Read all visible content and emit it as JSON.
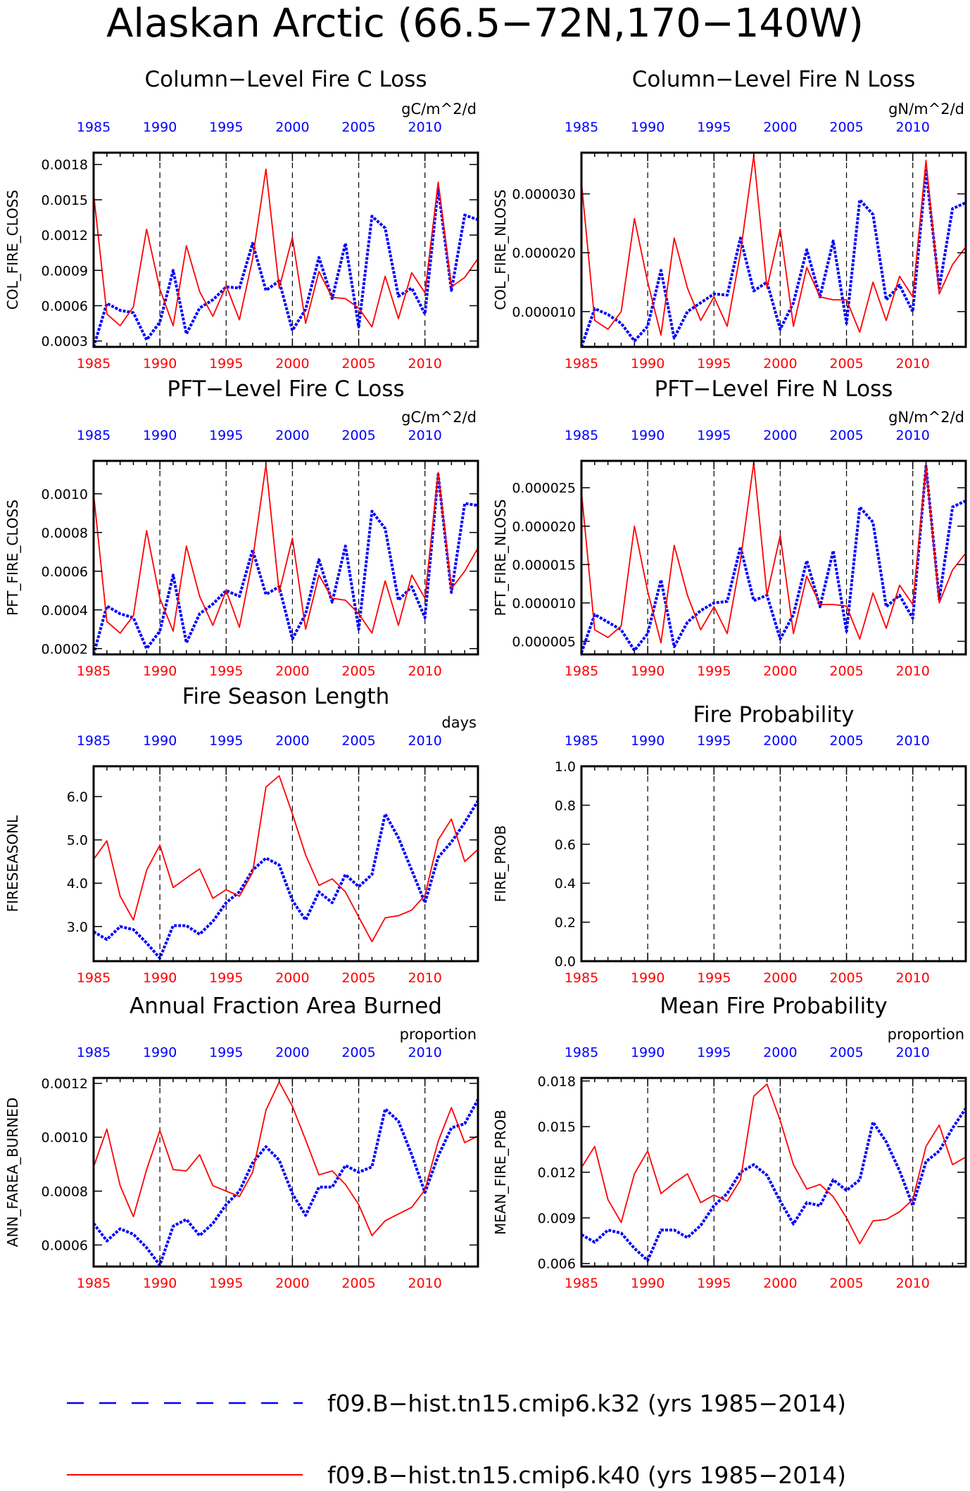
{
  "figure": {
    "title": "Alaskan Arctic (66.5−72N,170−140W)",
    "colors": {
      "k32": "#0000ff",
      "k40": "#ff0000",
      "axis": "#000000"
    }
  },
  "legend": [
    {
      "label": "f09.B−hist.tn15.cmip6.k32 (yrs 1985−2014)",
      "color": "#0000ff",
      "style": "dashed"
    },
    {
      "label": "f09.B−hist.tn15.cmip6.k40 (yrs 1985−2014)",
      "color": "#ff0000",
      "style": "solid"
    }
  ],
  "chart_data": [
    {
      "type": "line",
      "title": "Column−Level Fire C Loss",
      "ylabel": "COL_FIRE_CLOSS",
      "units": "gC/m^2/d",
      "xlim": [
        1985,
        2014
      ],
      "ylim": [
        0.00025,
        0.0019
      ],
      "ytick_values": [
        0.0003,
        0.0006,
        0.0009,
        0.0012,
        0.0015,
        0.0018
      ],
      "ytick_labels": [
        "0.0003",
        "0.0006",
        "0.0009",
        "0.0012",
        "0.0015",
        "0.0018"
      ],
      "x_ticks": [
        1985,
        1990,
        1995,
        2000,
        2005,
        2010
      ],
      "series": [
        {
          "name": "f09.B−hist.tn15.cmip6.k32",
          "values": [
            0.00025,
            0.00062,
            0.00056,
            0.00054,
            0.00031,
            0.00046,
            0.0009,
            0.00036,
            0.00058,
            0.00065,
            0.00076,
            0.00075,
            0.00113,
            0.00073,
            0.00081,
            0.00039,
            0.00057,
            0.00101,
            0.00066,
            0.00113,
            0.00042,
            0.00136,
            0.00126,
            0.00068,
            0.00075,
            0.00053,
            0.0016,
            0.00073,
            0.00137,
            0.00133
          ]
        },
        {
          "name": "f09.B−hist.tn15.cmip6.k40",
          "values": [
            0.00155,
            0.00053,
            0.00043,
            0.00059,
            0.00125,
            0.00074,
            0.00043,
            0.00111,
            0.00072,
            0.00051,
            0.00077,
            0.00048,
            0.001,
            0.00176,
            0.00075,
            0.00118,
            0.00045,
            0.00089,
            0.00067,
            0.00066,
            0.00058,
            0.00042,
            0.00085,
            0.00049,
            0.00088,
            0.00071,
            0.00165,
            0.00076,
            0.00084,
            0.001
          ]
        }
      ]
    },
    {
      "type": "line",
      "title": "Column−Level Fire N Loss",
      "ylabel": "COL_FIRE_NLOSS",
      "units": "gN/m^2/d",
      "xlim": [
        1985,
        2014
      ],
      "ylim": [
        4e-06,
        3.7e-05
      ],
      "ytick_values": [
        1e-05,
        2e-05,
        3e-05
      ],
      "ytick_labels": [
        "0.000010",
        "0.000020",
        "0.000030"
      ],
      "x_ticks": [
        1985,
        1990,
        1995,
        2000,
        2005,
        2010
      ],
      "series": [
        {
          "name": "f09.B−hist.tn15.cmip6.k32",
          "values": [
            4e-06,
            1.05e-05,
            9.5e-06,
            8e-06,
            5e-06,
            7.5e-06,
            1.7e-05,
            5.5e-06,
            1e-05,
            1.15e-05,
            1.3e-05,
            1.28e-05,
            2.25e-05,
            1.35e-05,
            1.5e-05,
            7e-06,
            1.15e-05,
            2.05e-05,
            1.25e-05,
            2.2e-05,
            8e-06,
            2.9e-05,
            2.65e-05,
            1.2e-05,
            1.45e-05,
            1e-05,
            3.4e-05,
            1.4e-05,
            2.75e-05,
            2.85e-05
          ]
        },
        {
          "name": "f09.B−hist.tn15.cmip6.k40",
          "values": [
            3.2e-05,
            8.5e-06,
            7e-06,
            1e-05,
            2.58e-05,
            1.5e-05,
            6e-06,
            2.25e-05,
            1.4e-05,
            8.5e-06,
            1.25e-05,
            7.5e-06,
            2e-05,
            3.65e-05,
            1.4e-05,
            2.4e-05,
            7.5e-06,
            1.75e-05,
            1.25e-05,
            1.2e-05,
            1.2e-05,
            6.5e-06,
            1.5e-05,
            8.5e-06,
            1.6e-05,
            1.25e-05,
            3.57e-05,
            1.3e-05,
            1.8e-05,
            2.1e-05
          ]
        }
      ]
    },
    {
      "type": "line",
      "title": "PFT−Level Fire C Loss",
      "ylabel": "PFT_FIRE_CLOSS",
      "units": "gC/m^2/d",
      "xlim": [
        1985,
        2014
      ],
      "ylim": [
        0.00017,
        0.00117
      ],
      "ytick_values": [
        0.0002,
        0.0004,
        0.0006,
        0.0008,
        0.001
      ],
      "ytick_labels": [
        "0.0002",
        "0.0004",
        "0.0006",
        "0.0008",
        "0.0010"
      ],
      "x_ticks": [
        1985,
        1990,
        1995,
        2000,
        2005,
        2010
      ],
      "series": [
        {
          "name": "f09.B−hist.tn15.cmip6.k32",
          "values": [
            0.00017,
            0.00042,
            0.00038,
            0.00036,
            0.0002,
            0.00029,
            0.00058,
            0.00023,
            0.00038,
            0.00043,
            0.0005,
            0.00047,
            0.00071,
            0.00048,
            0.00052,
            0.00025,
            0.00038,
            0.00066,
            0.00044,
            0.00073,
            0.0003,
            0.00091,
            0.00082,
            0.00045,
            0.00052,
            0.00036,
            0.0011,
            0.00049,
            0.00095,
            0.00094
          ]
        },
        {
          "name": "f09.B−hist.tn15.cmip6.k40",
          "values": [
            0.001,
            0.00034,
            0.00028,
            0.00037,
            0.00081,
            0.00046,
            0.00029,
            0.00073,
            0.00047,
            0.00032,
            0.0005,
            0.00031,
            0.00066,
            0.00115,
            0.00049,
            0.00077,
            0.0003,
            0.00058,
            0.00046,
            0.00045,
            0.00038,
            0.00028,
            0.00055,
            0.00032,
            0.00058,
            0.00046,
            0.00111,
            0.00051,
            0.0006,
            0.00072
          ]
        }
      ]
    },
    {
      "type": "line",
      "title": "PFT−Level Fire N Loss",
      "ylabel": "PFT_FIRE_NLOSS",
      "units": "gN/m^2/d",
      "xlim": [
        1985,
        2014
      ],
      "ylim": [
        3.3e-06,
        2.85e-05
      ],
      "ytick_values": [
        5e-06,
        1e-05,
        1.5e-05,
        2e-05,
        2.5e-05
      ],
      "ytick_labels": [
        "0.000005",
        "0.000010",
        "0.000015",
        "0.000020",
        "0.000025"
      ],
      "x_ticks": [
        1985,
        1990,
        1995,
        2000,
        2005,
        2010
      ],
      "series": [
        {
          "name": "f09.B−hist.tn15.cmip6.k32",
          "values": [
            3.5e-06,
            8.5e-06,
            7.5e-06,
            6.5e-06,
            3.8e-06,
            6e-06,
            1.3e-05,
            4.3e-06,
            7.5e-06,
            9e-06,
            1e-05,
            1.02e-05,
            1.73e-05,
            1.03e-05,
            1.1e-05,
            5.3e-06,
            8.5e-06,
            1.55e-05,
            9.5e-06,
            1.68e-05,
            6.3e-06,
            2.25e-05,
            2.05e-05,
            9.5e-06,
            1.1e-05,
            8e-06,
            2.78e-05,
            1.05e-05,
            2.25e-05,
            2.33e-05
          ]
        },
        {
          "name": "f09.B−hist.tn15.cmip6.k40",
          "values": [
            2.45e-05,
            6.5e-06,
            5.5e-06,
            7e-06,
            2e-05,
            1.15e-05,
            4.8e-06,
            1.75e-05,
            1.1e-05,
            6.5e-06,
            9.5e-06,
            6e-06,
            1.55e-05,
            2.83e-05,
            1.1e-05,
            1.88e-05,
            6e-06,
            1.35e-05,
            9.8e-06,
            9.8e-06,
            9.6e-06,
            5.3e-06,
            1.13e-05,
            6.7e-06,
            1.23e-05,
            9.8e-06,
            2.78e-05,
            1e-05,
            1.43e-05,
            1.65e-05
          ]
        }
      ]
    },
    {
      "type": "line",
      "title": "Fire Season Length",
      "ylabel": "FIRESEASONL",
      "units": "days",
      "xlim": [
        1985,
        2014
      ],
      "ylim": [
        2.2,
        6.7
      ],
      "ytick_values": [
        3.0,
        4.0,
        5.0,
        6.0
      ],
      "ytick_labels": [
        "3.0",
        "4.0",
        "5.0",
        "6.0"
      ],
      "x_ticks": [
        1985,
        1990,
        1995,
        2000,
        2005,
        2010
      ],
      "series": [
        {
          "name": "f09.B−hist.tn15.cmip6.k32",
          "values": [
            2.88,
            2.7,
            3.0,
            2.93,
            2.62,
            2.27,
            3.02,
            3.02,
            2.82,
            3.12,
            3.55,
            3.8,
            4.3,
            4.58,
            4.42,
            3.6,
            3.15,
            3.8,
            3.55,
            4.2,
            3.92,
            4.2,
            5.6,
            5.05,
            4.3,
            3.55,
            4.6,
            4.95,
            5.4,
            5.9
          ]
        },
        {
          "name": "f09.B−hist.tn15.cmip6.k40",
          "values": [
            4.55,
            4.98,
            3.7,
            3.15,
            4.3,
            4.88,
            3.9,
            4.12,
            4.33,
            3.65,
            3.85,
            3.7,
            4.25,
            6.22,
            6.48,
            5.6,
            4.65,
            3.95,
            4.1,
            3.8,
            3.22,
            2.65,
            3.2,
            3.25,
            3.38,
            3.72,
            5.0,
            5.48,
            4.5,
            4.78
          ]
        }
      ]
    },
    {
      "type": "line",
      "title": "Fire Probability",
      "ylabel": "FIRE_PROB",
      "units": "",
      "xlim": [
        1985,
        2014
      ],
      "ylim": [
        0.0,
        1.0
      ],
      "ytick_values": [
        0.0,
        0.2,
        0.4,
        0.6,
        0.8,
        1.0
      ],
      "ytick_labels": [
        "0.0",
        "0.2",
        "0.4",
        "0.6",
        "0.8",
        "1.0"
      ],
      "x_ticks": [
        1985,
        1990,
        1995,
        2000,
        2005,
        2010
      ],
      "series": []
    },
    {
      "type": "line",
      "title": "Annual Fraction Area Burned",
      "ylabel": "ANN_FAREA_BURNED",
      "units": "proportion",
      "xlim": [
        1985,
        2014
      ],
      "ylim": [
        0.00052,
        0.00122
      ],
      "ytick_values": [
        0.0006,
        0.0008,
        0.001,
        0.0012
      ],
      "ytick_labels": [
        "0.0006",
        "0.0008",
        "0.0010",
        "0.0012"
      ],
      "x_ticks": [
        1985,
        1990,
        1995,
        2000,
        2005,
        2010
      ],
      "series": [
        {
          "name": "f09.B−hist.tn15.cmip6.k32",
          "values": [
            0.00068,
            0.000615,
            0.00066,
            0.00064,
            0.00059,
            0.000525,
            0.00067,
            0.000695,
            0.000635,
            0.00068,
            0.00075,
            0.0008,
            0.000905,
            0.000965,
            0.000915,
            0.00079,
            0.00071,
            0.000815,
            0.000815,
            0.000895,
            0.00087,
            0.00089,
            0.001105,
            0.00106,
            0.000935,
            0.000795,
            0.00093,
            0.001035,
            0.00105,
            0.00114
          ]
        },
        {
          "name": "f09.B−hist.tn15.cmip6.k40",
          "values": [
            0.00089,
            0.00103,
            0.00082,
            0.000705,
            0.00088,
            0.001025,
            0.00088,
            0.000875,
            0.000935,
            0.00082,
            0.0008,
            0.00078,
            0.00087,
            0.0011,
            0.001205,
            0.001115,
            0.00099,
            0.00086,
            0.000875,
            0.000825,
            0.00075,
            0.000635,
            0.00069,
            0.000715,
            0.00074,
            0.000805,
            0.000985,
            0.00111,
            0.00098,
            0.001005
          ]
        }
      ]
    },
    {
      "type": "line",
      "title": "Mean Fire Probability",
      "ylabel": "MEAN_FIRE_PROB",
      "units": "proportion",
      "xlim": [
        1985,
        2014
      ],
      "ylim": [
        0.0058,
        0.0182
      ],
      "ytick_values": [
        0.006,
        0.009,
        0.012,
        0.015,
        0.018
      ],
      "ytick_labels": [
        "0.006",
        "0.009",
        "0.012",
        "0.015",
        "0.018"
      ],
      "x_ticks": [
        1985,
        1990,
        1995,
        2000,
        2005,
        2010
      ],
      "series": [
        {
          "name": "f09.B−hist.tn15.cmip6.k32",
          "values": [
            0.0079,
            0.0074,
            0.0082,
            0.008,
            0.007,
            0.0062,
            0.0082,
            0.0082,
            0.0077,
            0.0085,
            0.0098,
            0.0106,
            0.012,
            0.0125,
            0.0118,
            0.0101,
            0.0086,
            0.01,
            0.0098,
            0.0115,
            0.0108,
            0.0115,
            0.0153,
            0.014,
            0.0121,
            0.0098,
            0.0127,
            0.0134,
            0.0149,
            0.0162
          ]
        },
        {
          "name": "f09.B−hist.tn15.cmip6.k40",
          "values": [
            0.0123,
            0.0137,
            0.0102,
            0.0087,
            0.0119,
            0.0134,
            0.0106,
            0.0113,
            0.0119,
            0.01,
            0.0105,
            0.0101,
            0.0115,
            0.017,
            0.0178,
            0.0154,
            0.0125,
            0.0109,
            0.0112,
            0.0104,
            0.009,
            0.0073,
            0.0088,
            0.0089,
            0.0094,
            0.0102,
            0.0137,
            0.0151,
            0.0125,
            0.013
          ]
        }
      ]
    }
  ]
}
